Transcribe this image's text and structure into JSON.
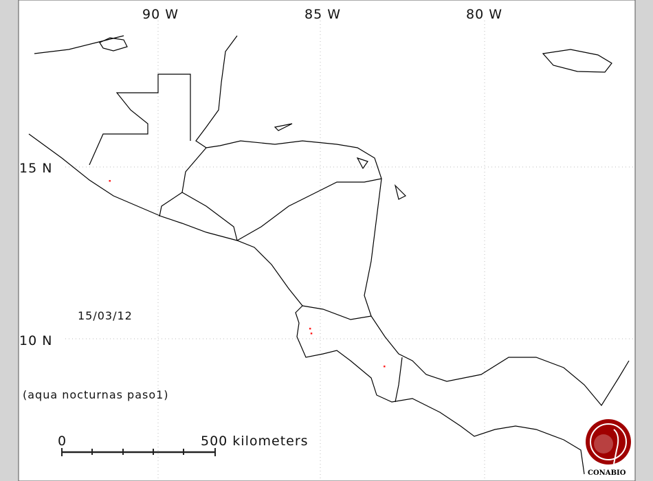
{
  "map": {
    "graticule_labels": {
      "lon": [
        "90 W",
        "85 W",
        "80 W"
      ],
      "lat": [
        "15 N",
        "10 N"
      ]
    },
    "date": "15/03/12",
    "caption": "(aqua nocturnas paso1)",
    "scale_bar": {
      "start_label": "0",
      "end_label": "500 kilometers"
    },
    "logo_text": "CONABIO",
    "colors": {
      "hotspot": "#ff2020",
      "logo": "#a00000",
      "frame": "#d4d4d4"
    },
    "hotspots": [
      {
        "lon": -91.5,
        "lat": 14.6
      },
      {
        "lon": -85.3,
        "lat": 10.3
      },
      {
        "lon": -85.26,
        "lat": 10.16
      },
      {
        "lon": -83.0,
        "lat": 9.2
      }
    ]
  }
}
